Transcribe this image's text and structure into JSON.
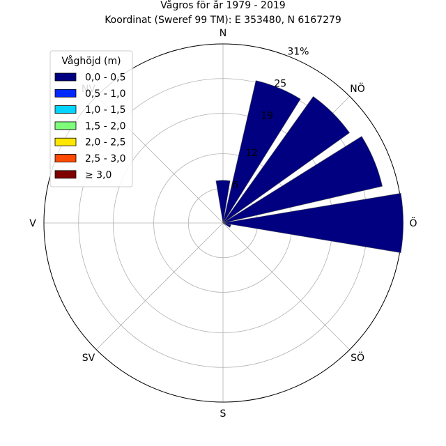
{
  "chart_data": {
    "type": "windrose",
    "title": "Vågros för år 1979 - 2019",
    "subtitle": "Koordinat (Sweref 99 TM): E 353480, N 6167279",
    "directions": [
      "N",
      "NÖ",
      "Ö",
      "SÖ",
      "S",
      "SV",
      "V",
      "NV"
    ],
    "sector_angles_deg": [
      0,
      22.5,
      45,
      67.5,
      90,
      112.5
    ],
    "r_ticks": [
      6,
      12,
      19,
      25,
      31
    ],
    "r_tick_labels": [
      "6",
      "12",
      "19",
      "25",
      "31%"
    ],
    "rmax": 31,
    "grid": true,
    "series": [
      {
        "name": "0,0 - 0,5",
        "color": "#000080",
        "values": [
          7.4,
          25.3,
          26.9,
          28.3,
          31.2,
          1.4
        ]
      },
      {
        "name": "0,5 - 1,0",
        "color": "#0029ff",
        "values": [
          0,
          0,
          0,
          0,
          0,
          0
        ]
      },
      {
        "name": "1,0 - 1,5",
        "color": "#00d4ff",
        "values": [
          0,
          0,
          0,
          0,
          0,
          0
        ]
      },
      {
        "name": "1,5 - 2,0",
        "color": "#7dff7a",
        "values": [
          0,
          0,
          0,
          0,
          0,
          0
        ]
      },
      {
        "name": "2,0 - 2,5",
        "color": "#ffe600",
        "values": [
          0,
          0,
          0,
          0,
          0,
          0
        ]
      },
      {
        "name": "2,5 - 3,0",
        "color": "#ff4a00",
        "values": [
          0,
          0,
          0,
          0,
          0,
          0
        ]
      },
      {
        "name": "≥ 3,0",
        "color": "#800000",
        "values": [
          0,
          0,
          0,
          0,
          0,
          0
        ]
      }
    ],
    "legend": {
      "title": "Våghöjd (m)",
      "position": "top-left"
    }
  }
}
